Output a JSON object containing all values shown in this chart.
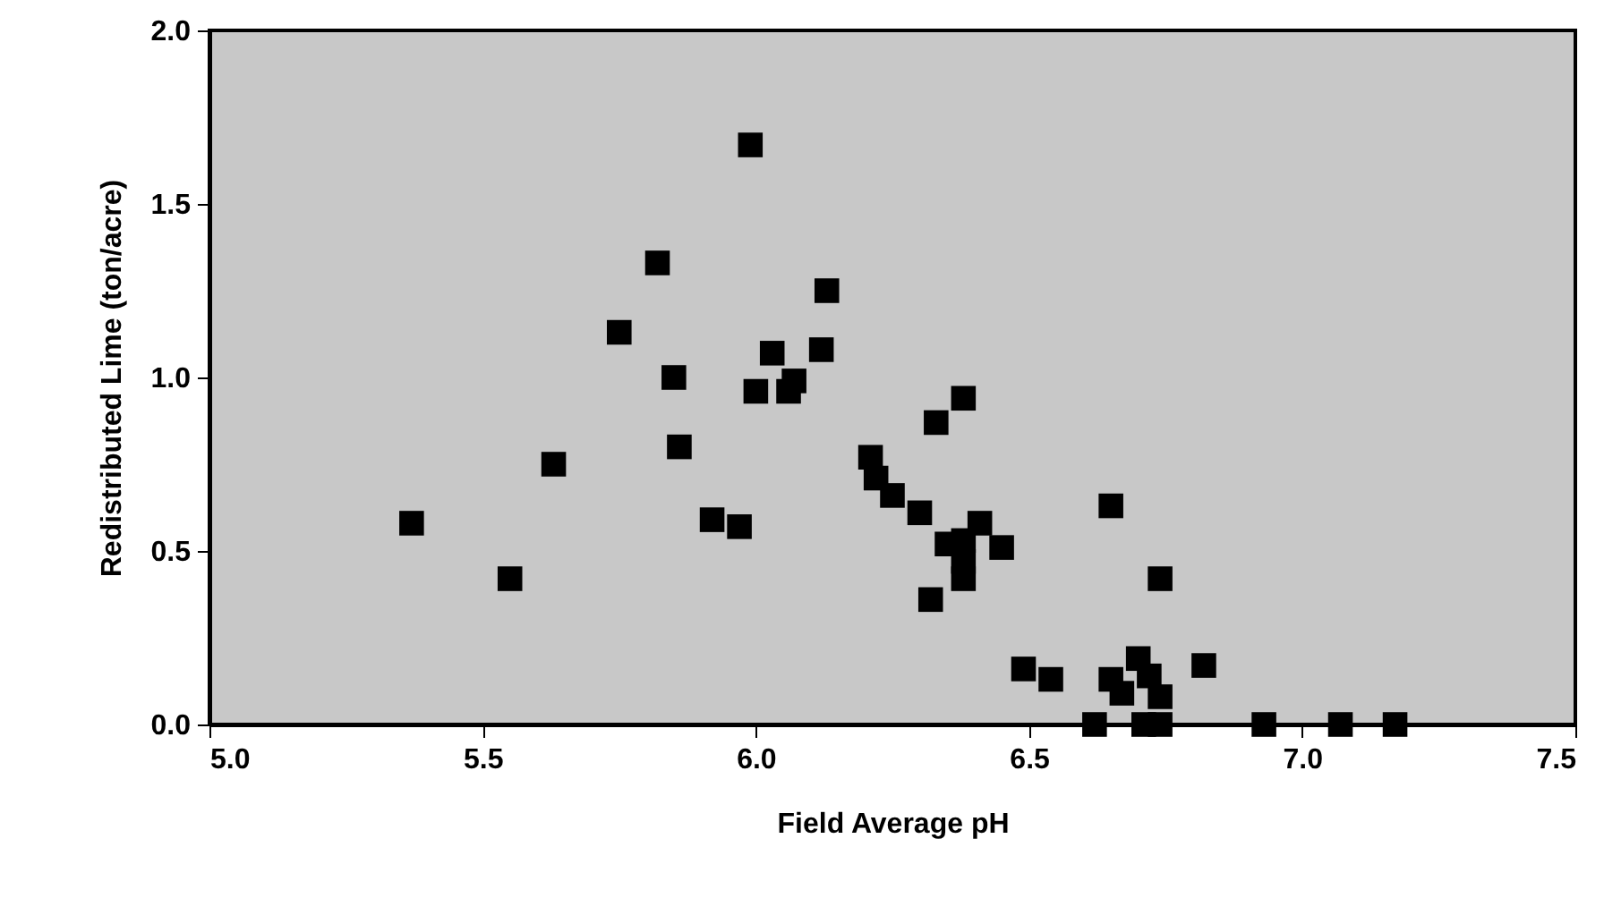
{
  "chart_data": {
    "type": "scatter",
    "xlabel": "Field Average pH",
    "ylabel": "Redistributed Lime (ton/acre)",
    "x": [
      5.37,
      5.55,
      5.63,
      5.75,
      5.82,
      5.99,
      5.85,
      5.86,
      5.92,
      5.97,
      6.13,
      6.12,
      6.03,
      6.0,
      6.06,
      6.07,
      6.38,
      6.33,
      6.21,
      6.22,
      6.25,
      6.3,
      6.35,
      6.38,
      6.41,
      6.45,
      6.38,
      6.38,
      6.32,
      6.49,
      6.54,
      6.62,
      6.65,
      6.74,
      6.65,
      6.7,
      6.72,
      6.67,
      6.74,
      6.82,
      6.71,
      6.74,
      6.93,
      7.07,
      7.17
    ],
    "series": [
      {
        "color": "#000000",
        "values": [
          0.58,
          0.42,
          0.75,
          1.13,
          1.33,
          1.67,
          1.0,
          0.8,
          0.59,
          0.57,
          1.25,
          1.08,
          1.07,
          0.96,
          0.96,
          0.99,
          0.94,
          0.87,
          0.77,
          0.71,
          0.66,
          0.61,
          0.52,
          0.53,
          0.58,
          0.51,
          0.47,
          0.42,
          0.36,
          0.16,
          0.13,
          0.0,
          0.63,
          0.42,
          0.13,
          0.19,
          0.14,
          0.09,
          0.08,
          0.17,
          0.0,
          0.0,
          0.0,
          0.0,
          0.0
        ]
      }
    ],
    "xlim": [
      5.0,
      7.5
    ],
    "xticks": [
      {
        "value": 5,
        "label": "5.0"
      },
      5.5,
      {
        "value": 6,
        "label": "6.0"
      },
      6.5,
      {
        "value": 7,
        "label": "7.0"
      },
      7.5
    ],
    "ylim": [
      0,
      2
    ],
    "yticks": [
      {
        "value": 0,
        "label": "0.0"
      },
      0.5,
      {
        "value": 1,
        "label": "1.0"
      },
      1.5,
      {
        "value": 2,
        "label": "2.0"
      }
    ],
    "grid": false,
    "marker": "square"
  }
}
